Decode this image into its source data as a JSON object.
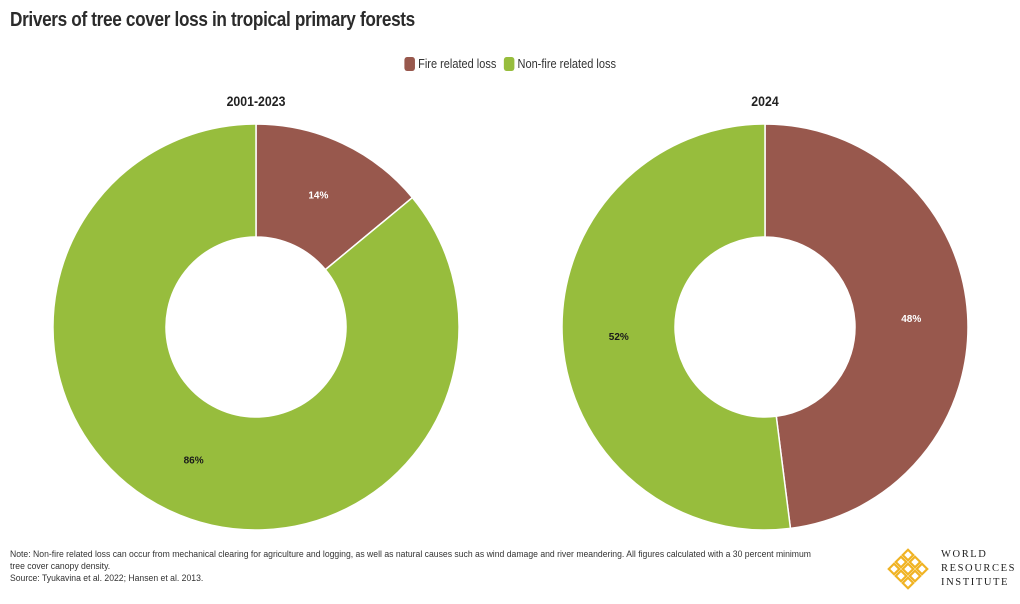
{
  "title": "Drivers of tree cover loss in tropical primary forests",
  "legend": [
    {
      "label": "Fire related loss",
      "color": "#98584d"
    },
    {
      "label": "Non-fire related loss",
      "color": "#97bd3d"
    }
  ],
  "chart_data": [
    {
      "type": "pie",
      "title": "2001-2023",
      "slices": [
        {
          "name": "Fire related loss",
          "value": 14,
          "label": "14%",
          "color": "#98584d"
        },
        {
          "name": "Non-fire related loss",
          "value": 86,
          "label": "86%",
          "color": "#97bd3d"
        }
      ]
    },
    {
      "type": "pie",
      "title": "2024",
      "slices": [
        {
          "name": "Fire related loss",
          "value": 48,
          "label": "48%",
          "color": "#98584d"
        },
        {
          "name": "Non-fire related loss",
          "value": 52,
          "label": "52%",
          "color": "#97bd3d"
        }
      ]
    }
  ],
  "footer": {
    "note": "Note: Non-fire related loss can occur from mechanical clearing for agriculture and logging, as well as natural causes such as wind damage and river meandering. All figures calculated with a 30 percent minimum tree cover canopy density.",
    "source": "Source: Tyukavina et al. 2022; Hansen et al. 2013."
  },
  "logo": {
    "line1": "WORLD",
    "line2": "RESOURCES",
    "line3": "INSTITUTE",
    "color": "#f0b323"
  }
}
